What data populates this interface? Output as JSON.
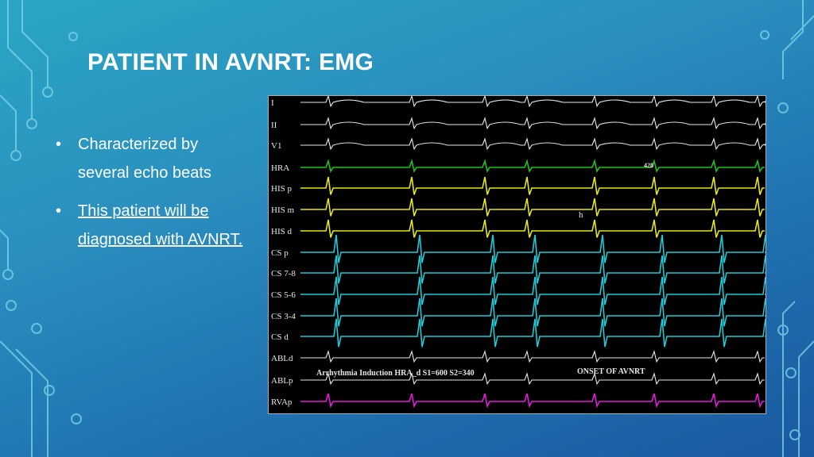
{
  "slide": {
    "title": "PATIENT IN AVNRT: EMG",
    "bullets": [
      {
        "text": "Characterized by several echo beats",
        "link": false
      },
      {
        "text": "This patient will be diagnosed with AVNRT.",
        "link": true
      }
    ]
  },
  "tracing": {
    "leads": [
      "I",
      "II",
      "V1",
      "HRA",
      "HIS p",
      "HIS m",
      "HIS d",
      "CS p",
      "CS 7-8",
      "CS 5-6",
      "CS 3-4",
      "CS d",
      "ABLd",
      "ABLp",
      "RVAp"
    ],
    "annotation_left": "Arrhythmia Induction HRA_d S1=600 S2=340",
    "annotation_right": "ONSET OF AVNRT",
    "interval_label": "428",
    "marker_label": "h"
  },
  "colors": {
    "surface_leads": "#e8e8e8",
    "hra": "#22c21e",
    "his": "#e6e619",
    "cs": "#1fc9d6",
    "rva": "#e01ad7",
    "baseline": "#1e8f6e"
  }
}
